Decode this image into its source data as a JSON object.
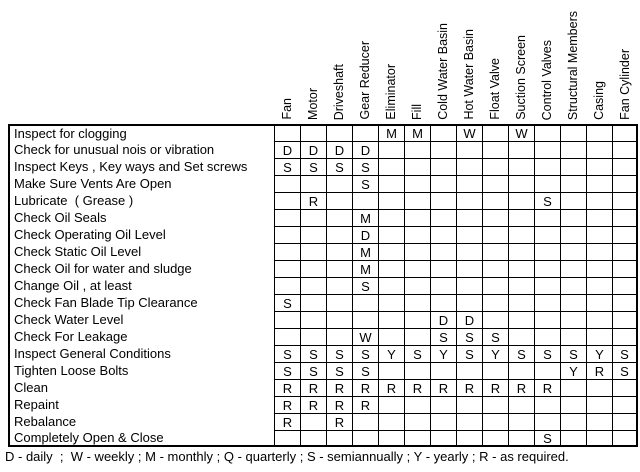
{
  "table": {
    "columns": [
      "Fan",
      "Motor",
      "Driveshaft",
      "Gear Reducer",
      "Eliminator",
      "Fill",
      "Cold Water Basin",
      "Hot Water Basin",
      "Float Valve",
      "Suction Screen",
      "Control Valves",
      "Structural Members",
      "Casing",
      "Fan Cylinder"
    ],
    "rows": [
      {
        "label": "Inspect for clogging",
        "cells": [
          "",
          "",
          "",
          "",
          "M",
          "M",
          "",
          "W",
          "",
          "W",
          "",
          "",
          "",
          ""
        ]
      },
      {
        "label": "Check for unusual nois or vibration",
        "cells": [
          "D",
          "D",
          "D",
          "D",
          "",
          "",
          "",
          "",
          "",
          "",
          "",
          "",
          "",
          ""
        ]
      },
      {
        "label": "Inspect Keys , Key ways and Set screws",
        "cells": [
          "S",
          "S",
          "S",
          "S",
          "",
          "",
          "",
          "",
          "",
          "",
          "",
          "",
          "",
          ""
        ]
      },
      {
        "label": "Make Sure Vents Are Open",
        "cells": [
          "",
          "",
          "",
          "S",
          "",
          "",
          "",
          "",
          "",
          "",
          "",
          "",
          "",
          ""
        ]
      },
      {
        "label": "Lubricate  ( Grease )",
        "cells": [
          "",
          "R",
          "",
          "",
          "",
          "",
          "",
          "",
          "",
          "",
          "S",
          "",
          "",
          ""
        ]
      },
      {
        "label": "Check Oil Seals",
        "cells": [
          "",
          "",
          "",
          "M",
          "",
          "",
          "",
          "",
          "",
          "",
          "",
          "",
          "",
          ""
        ]
      },
      {
        "label": "Check Operating Oil Level",
        "cells": [
          "",
          "",
          "",
          "D",
          "",
          "",
          "",
          "",
          "",
          "",
          "",
          "",
          "",
          ""
        ]
      },
      {
        "label": "Check Static Oil Level",
        "cells": [
          "",
          "",
          "",
          "M",
          "",
          "",
          "",
          "",
          "",
          "",
          "",
          "",
          "",
          ""
        ]
      },
      {
        "label": "Check Oil for water and sludge",
        "cells": [
          "",
          "",
          "",
          "M",
          "",
          "",
          "",
          "",
          "",
          "",
          "",
          "",
          "",
          ""
        ]
      },
      {
        "label": "Change Oil , at least",
        "cells": [
          "",
          "",
          "",
          "S",
          "",
          "",
          "",
          "",
          "",
          "",
          "",
          "",
          "",
          ""
        ]
      },
      {
        "label": "Check Fan Blade Tip Clearance",
        "cells": [
          "S",
          "",
          "",
          "",
          "",
          "",
          "",
          "",
          "",
          "",
          "",
          "",
          "",
          ""
        ]
      },
      {
        "label": "Check Water Level",
        "cells": [
          "",
          "",
          "",
          "",
          "",
          "",
          "D",
          "D",
          "",
          "",
          "",
          "",
          "",
          ""
        ]
      },
      {
        "label": "Check For Leakage",
        "cells": [
          "",
          "",
          "",
          "W",
          "",
          "",
          "S",
          "S",
          "S",
          "",
          "",
          "",
          "",
          ""
        ]
      },
      {
        "label": "Inspect General Conditions",
        "cells": [
          "S",
          "S",
          "S",
          "S",
          "Y",
          "S",
          "Y",
          "S",
          "Y",
          "S",
          "S",
          "S",
          "Y",
          "S"
        ]
      },
      {
        "label": "Tighten Loose Bolts",
        "cells": [
          "S",
          "S",
          "S",
          "S",
          "",
          "",
          "",
          "",
          "",
          "",
          "",
          "Y",
          "R",
          "S"
        ]
      },
      {
        "label": "Clean",
        "cells": [
          "R",
          "R",
          "R",
          "R",
          "R",
          "R",
          "R",
          "R",
          "R",
          "R",
          "R",
          "",
          "",
          ""
        ]
      },
      {
        "label": "Repaint",
        "cells": [
          "R",
          "R",
          "R",
          "R",
          "",
          "",
          "",
          "",
          "",
          "",
          "",
          "",
          "",
          ""
        ]
      },
      {
        "label": "Rebalance",
        "cells": [
          "R",
          "",
          "R",
          "",
          "",
          "",
          "",
          "",
          "",
          "",
          "",
          "",
          "",
          ""
        ]
      },
      {
        "label": "Completely Open & Close",
        "cells": [
          "",
          "",
          "",
          "",
          "",
          "",
          "",
          "",
          "",
          "",
          "S",
          "",
          "",
          ""
        ]
      }
    ]
  },
  "legend": {
    "text": "D - daily  ;  W - weekly ; M - monthly ; Q - quarterly ; S - semiannually ; Y - yearly ; R - as required."
  },
  "frequency_codes": {
    "D": "daily",
    "W": "weekly",
    "M": "monthly",
    "Q": "quarterly",
    "S": "semiannually",
    "Y": "yearly",
    "R": "as required"
  },
  "colors": {
    "text": "#000000",
    "grid_line": "#000000",
    "background": "#ffffff"
  }
}
